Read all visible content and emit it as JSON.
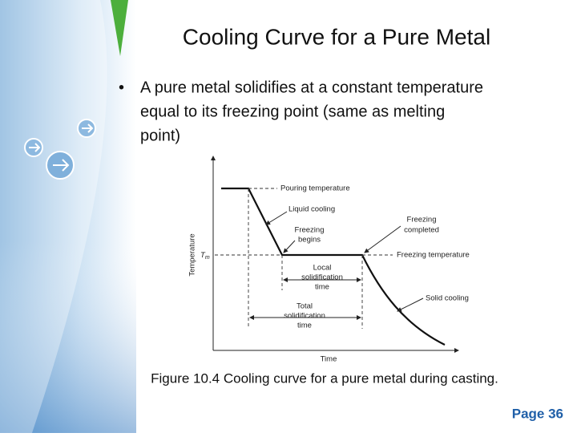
{
  "slide": {
    "title": "Cooling Curve for a Pure Metal",
    "bullet": {
      "marker": "•",
      "lines": [
        "A pure metal solidifies at a constant temperature",
        "equal to its freezing point (same as melting",
        "point)"
      ]
    },
    "figure": {
      "y_axis": "Temperature",
      "x_axis": "Time",
      "tm": {
        "base": "T",
        "sub": "m"
      },
      "labels": {
        "pouring": [
          "Pouring temperature"
        ],
        "liquid": [
          "Liquid cooling"
        ],
        "begins": [
          "Freezing",
          "begins"
        ],
        "completed": [
          "Freezing",
          "completed"
        ],
        "freezing_temp": [
          "Freezing temperature"
        ],
        "local": [
          "Local",
          "solidification",
          "time"
        ],
        "total": [
          "Total",
          "solidification",
          "time"
        ],
        "solid": [
          "Solid cooling"
        ]
      }
    },
    "caption": "Figure 10.4  Cooling curve for a pure metal during casting.",
    "page": "Page 36"
  }
}
